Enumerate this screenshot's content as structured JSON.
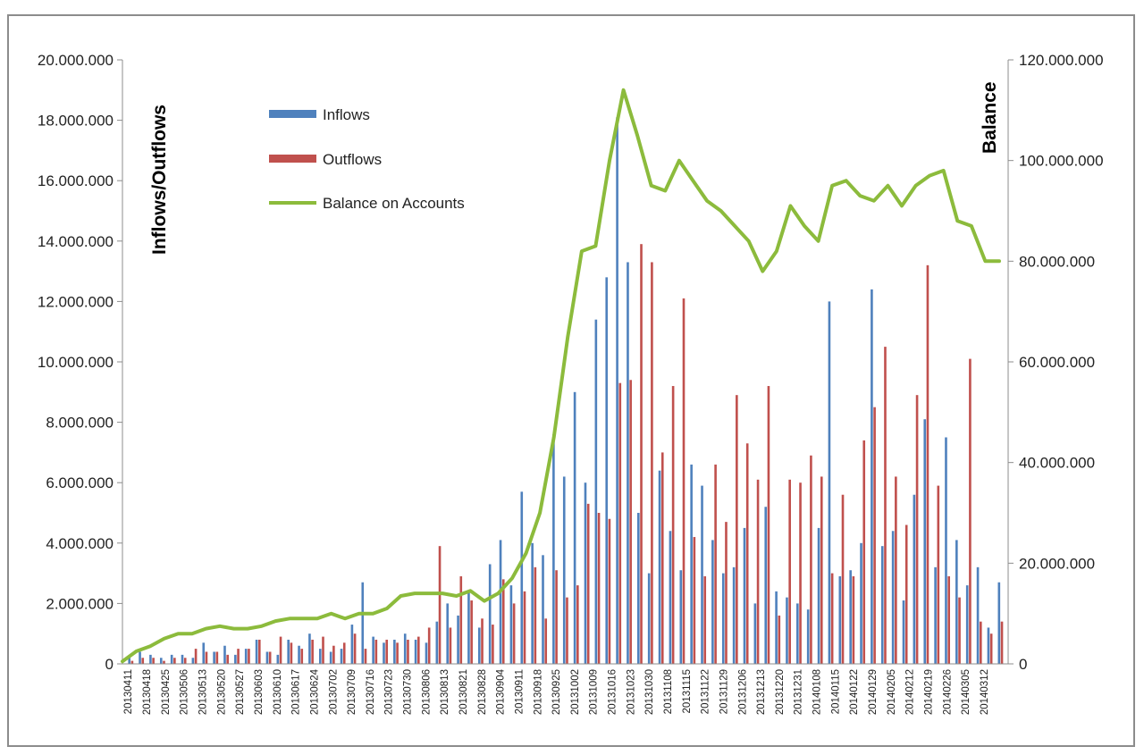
{
  "chart_data": {
    "type": "bar",
    "ylabel_left": "Inflows/Outflows",
    "ylabel_right": "Balance",
    "ylim_left": [
      0,
      20000000
    ],
    "ylim_right": [
      0,
      120000000
    ],
    "yticks_left": [
      "0",
      "2.000.000",
      "4.000.000",
      "6.000.000",
      "8.000.000",
      "10.000.000",
      "12.000.000",
      "14.000.000",
      "16.000.000",
      "18.000.000",
      "20.000.000"
    ],
    "yticks_right": [
      "0",
      "20.000.000",
      "40.000.000",
      "60.000.000",
      "80.000.000",
      "100.000.000",
      "120.000.000"
    ],
    "legend": {
      "placement": "top-left",
      "items": [
        "Inflows",
        "Outflows",
        "Balance on Accounts"
      ]
    },
    "colors": {
      "inflows": "#4f81bd",
      "outflows": "#c0504d",
      "balance": "#8cbb3c"
    },
    "grid": false,
    "x_tick_labels": [
      "20130411",
      "20130418",
      "20130425",
      "20130506",
      "20130513",
      "20130520",
      "20130527",
      "20130603",
      "20130610",
      "20130617",
      "20130624",
      "20130702",
      "20130709",
      "20130716",
      "20130723",
      "20130730",
      "20130806",
      "20130813",
      "20130821",
      "20130828",
      "20130904",
      "20130911",
      "20130918",
      "20130925",
      "20131002",
      "20131009",
      "20131016",
      "20131023",
      "20131030",
      "20131108",
      "20131115",
      "20131122",
      "20131129",
      "20131206",
      "20131213",
      "20131220",
      "20131231",
      "20140108",
      "20140115",
      "20140122",
      "20140129",
      "20140205",
      "20140212",
      "20140219",
      "20140226",
      "20140305",
      "20140312"
    ],
    "series": [
      {
        "name": "Inflows",
        "kind": "bar",
        "axis": "left",
        "values": [
          0.2,
          0.4,
          0.3,
          0.2,
          0.3,
          0.3,
          0.2,
          0.7,
          0.4,
          0.6,
          0.3,
          0.5,
          0.8,
          0.4,
          0.3,
          0.8,
          0.6,
          1.0,
          0.5,
          0.4,
          0.5,
          1.3,
          2.7,
          0.9,
          0.7,
          0.8,
          1.0,
          0.8,
          0.7,
          1.4,
          2.0,
          1.6,
          2.4,
          1.2,
          3.3,
          4.1,
          2.6,
          5.7,
          4.0,
          3.6,
          7.6,
          6.2,
          9.0,
          6.0,
          11.4,
          12.8,
          18.1,
          13.3,
          5.0,
          3.0,
          6.4,
          4.4,
          3.1,
          6.6,
          5.9,
          4.1,
          3.0,
          3.2,
          4.5,
          2.0,
          5.2,
          2.4,
          2.2,
          2.0,
          1.8,
          4.5,
          12.0,
          2.9,
          3.1,
          4.0,
          12.4,
          3.9,
          4.4,
          2.1,
          5.6,
          8.1,
          3.2,
          7.5,
          4.1,
          2.6,
          3.2,
          1.2,
          2.7
        ]
      },
      {
        "name": "Outflows",
        "kind": "bar",
        "axis": "left",
        "values": [
          0.1,
          0.2,
          0.2,
          0.1,
          0.2,
          0.2,
          0.5,
          0.4,
          0.4,
          0.3,
          0.5,
          0.5,
          0.8,
          0.4,
          0.9,
          0.7,
          0.5,
          0.8,
          0.9,
          0.6,
          0.7,
          1.0,
          0.5,
          0.8,
          0.8,
          0.7,
          0.8,
          0.9,
          1.2,
          3.9,
          1.2,
          2.9,
          2.1,
          1.5,
          1.3,
          2.8,
          2.0,
          2.4,
          3.2,
          1.5,
          3.1,
          2.2,
          2.6,
          5.3,
          5.0,
          4.8,
          9.3,
          9.4,
          13.9,
          13.3,
          7.0,
          9.2,
          12.1,
          4.2,
          2.9,
          6.6,
          4.7,
          8.9,
          7.3,
          6.1,
          9.2,
          1.6,
          6.1,
          6.0,
          6.9,
          6.2,
          3.0,
          5.6,
          2.9,
          7.4,
          8.5,
          10.5,
          6.2,
          4.6,
          8.9,
          13.2,
          5.9,
          2.9,
          2.2,
          10.1,
          1.4,
          1.0,
          1.4
        ]
      },
      {
        "name": "Balance on Accounts",
        "kind": "line",
        "axis": "right",
        "values": [
          0.5,
          2.5,
          3.5,
          5.0,
          6.0,
          6.0,
          7.0,
          7.5,
          7.0,
          7.0,
          7.5,
          8.5,
          9.0,
          9.0,
          9.0,
          10.0,
          9.0,
          10.0,
          10.0,
          11.0,
          13.5,
          14.0,
          14.0,
          14.0,
          13.5,
          14.5,
          12.5,
          14.0,
          17.0,
          22.0,
          30.0,
          45.0,
          65.0,
          82.0,
          83.0,
          100.0,
          114.0,
          105.0,
          95.0,
          94.0,
          100.0,
          96.0,
          92.0,
          90.0,
          87.0,
          84.0,
          78.0,
          82.0,
          91.0,
          87.0,
          84.0,
          95.0,
          96.0,
          93.0,
          92.0,
          95.0,
          91.0,
          95.0,
          97.0,
          98.0,
          88.0,
          87.0,
          80.0,
          80.0
        ]
      }
    ]
  }
}
